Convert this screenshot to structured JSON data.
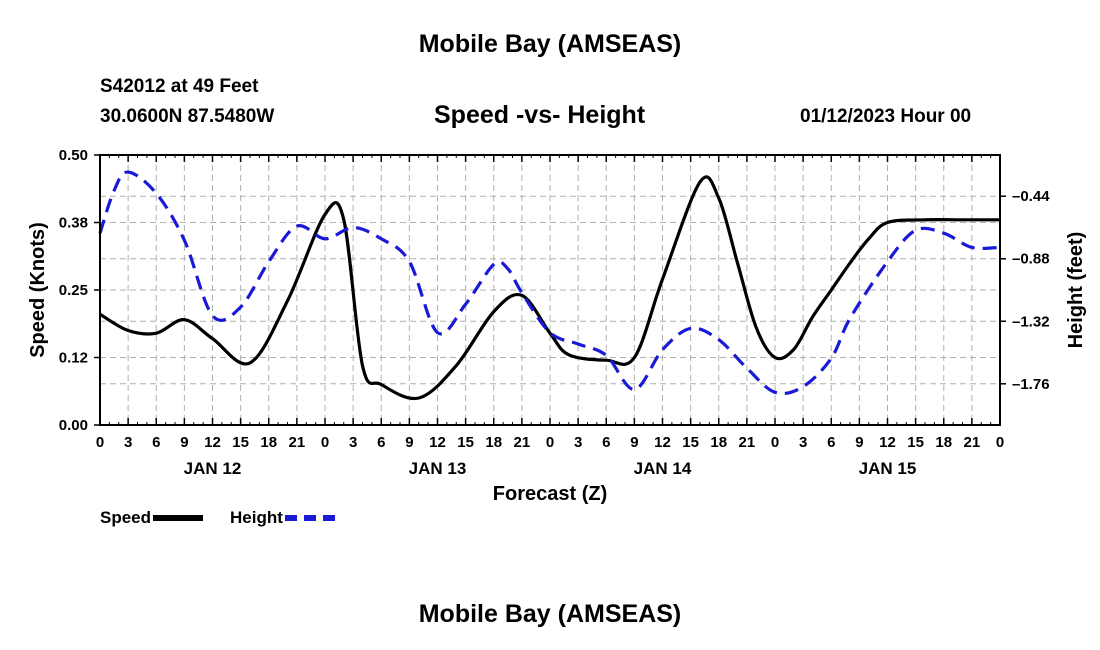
{
  "header": {
    "title": "Mobile Bay (AMSEAS)",
    "station": "S42012 at 49 Feet",
    "coords": "30.0600N  87.5480W",
    "chart_title": "Speed -vs- Height",
    "run_time": "01/12/2023 Hour 00",
    "bottom_title": "Mobile Bay (AMSEAS)"
  },
  "legend": {
    "speed_label": "Speed",
    "height_label": "Height"
  },
  "colors": {
    "speed": "#000000",
    "height": "#1a1ad6",
    "grid": "#b0b0b0"
  },
  "chart_data": {
    "type": "line",
    "title": "Speed -vs- Height",
    "xlabel": "Forecast (Z)",
    "ylabel": "Speed (Knots)",
    "y2label": "Height (feet)",
    "x_unit": "hours from 01/12/2023 00Z",
    "xlim": [
      0,
      96
    ],
    "ylim": [
      0.0,
      0.5
    ],
    "y2lim": [
      -2.05,
      -0.15
    ],
    "x_tick_labels": [
      "0",
      "3",
      "6",
      "9",
      "12",
      "15",
      "18",
      "21",
      "0",
      "3",
      "6",
      "9",
      "12",
      "15",
      "18",
      "21",
      "0",
      "3",
      "6",
      "9",
      "12",
      "15",
      "18",
      "21",
      "0",
      "3",
      "6",
      "9",
      "12",
      "15",
      "18",
      "21",
      "0"
    ],
    "day_labels": [
      {
        "hour": 12,
        "label": "JAN 12"
      },
      {
        "hour": 36,
        "label": "JAN 13"
      },
      {
        "hour": 60,
        "label": "JAN 14"
      },
      {
        "hour": 84,
        "label": "JAN 15"
      }
    ],
    "y_tick_labels": [
      "0.00",
      "0.12",
      "0.25",
      "0.38",
      "0.50"
    ],
    "y2_tick_values": [
      -0.44,
      -0.88,
      -1.32,
      -1.76
    ],
    "y2_tick_labels": [
      "–0.44",
      "–0.88",
      "–1.32",
      "–1.76"
    ],
    "series": [
      {
        "name": "Speed",
        "axis": "left",
        "style": "solid",
        "x": [
          0,
          3,
          6,
          9,
          12,
          16,
          20,
          24,
          26,
          28,
          30,
          34,
          38,
          42,
          45,
          48,
          50,
          54,
          57,
          60,
          64,
          66,
          68,
          70,
          72,
          74,
          76,
          78,
          80,
          82,
          84,
          88,
          92,
          96
        ],
        "values": [
          0.205,
          0.175,
          0.17,
          0.195,
          0.16,
          0.115,
          0.23,
          0.39,
          0.38,
          0.11,
          0.075,
          0.05,
          0.11,
          0.21,
          0.24,
          0.17,
          0.13,
          0.12,
          0.125,
          0.27,
          0.45,
          0.42,
          0.3,
          0.18,
          0.125,
          0.14,
          0.2,
          0.25,
          0.3,
          0.345,
          0.375,
          0.38,
          0.38,
          0.38
        ]
      },
      {
        "name": "Height",
        "axis": "right",
        "style": "dashed",
        "x": [
          0,
          1.5,
          3,
          6,
          9,
          12,
          15,
          18,
          21,
          24,
          27,
          30,
          33,
          36,
          39,
          42,
          43.5,
          45,
          48,
          51,
          54,
          57,
          60,
          63,
          66,
          69,
          72,
          75,
          78,
          80,
          84,
          87,
          90,
          93,
          96
        ],
        "values": [
          -0.7,
          -0.4,
          -0.27,
          -0.42,
          -0.75,
          -1.28,
          -1.22,
          -0.9,
          -0.65,
          -0.74,
          -0.66,
          -0.74,
          -0.9,
          -1.4,
          -1.2,
          -0.92,
          -0.95,
          -1.12,
          -1.4,
          -1.48,
          -1.56,
          -1.8,
          -1.52,
          -1.37,
          -1.45,
          -1.65,
          -1.82,
          -1.78,
          -1.58,
          -1.3,
          -0.9,
          -0.68,
          -0.7,
          -0.8,
          -0.8
        ]
      }
    ]
  }
}
